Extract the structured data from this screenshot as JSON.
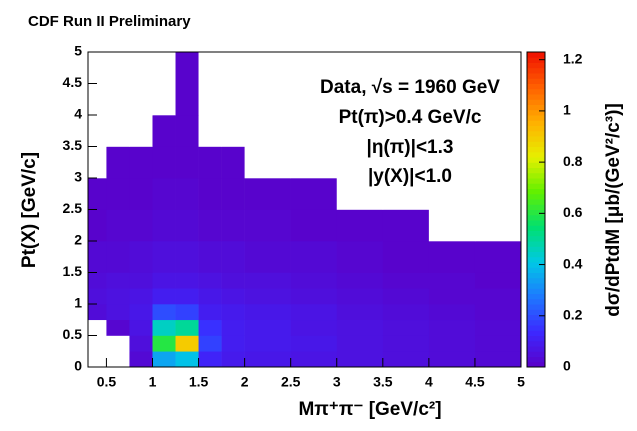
{
  "chart_data": {
    "type": "heatmap",
    "title": "CDF Run II Preliminary",
    "annotations": [
      "Data, √s = 1960 GeV",
      "Pt(π)>0.4 GeV/c",
      "|η(π)|<1.3",
      "|y(X)|<1.0"
    ],
    "x_label": "Mπ⁺π⁻ [GeV/c²]",
    "y_label": "Pt(X) [GeV/c]",
    "z_label": "dσ/dPtdM [μb/(GeV²/c³)]",
    "xlim": [
      0.3,
      5
    ],
    "ylim": [
      0,
      5
    ],
    "zlim": [
      0,
      1.23
    ],
    "xticks": [
      0.5,
      1,
      1.5,
      2,
      2.5,
      3,
      3.5,
      4,
      4.5,
      5
    ],
    "yticks": [
      0,
      0.5,
      1,
      1.5,
      2,
      2.5,
      3,
      3.5,
      4,
      4.5,
      5
    ],
    "zticks": [
      0,
      0.2,
      0.4,
      0.6,
      0.8,
      1,
      1.2
    ],
    "xbins": [
      0.3,
      0.5,
      0.75,
      1.0,
      1.25,
      1.5,
      1.75,
      2.0,
      2.5,
      3.0,
      3.5,
      4.0,
      4.5,
      5.0
    ],
    "ybins": [
      0,
      0.25,
      0.5,
      0.75,
      1,
      1.25,
      1.5,
      2,
      2.5,
      3,
      3.5,
      4,
      5
    ],
    "z": [
      [
        0,
        0,
        0.03,
        0.35,
        0.4,
        0.12,
        0.09,
        0.08,
        0.07,
        0.06,
        0.05,
        0.04,
        0.03
      ],
      [
        0,
        0,
        0.05,
        0.6,
        0.9,
        0.18,
        0.1,
        0.09,
        0.08,
        0.06,
        0.05,
        0.04,
        0.03
      ],
      [
        0,
        0.02,
        0.07,
        0.45,
        0.5,
        0.15,
        0.1,
        0.09,
        0.07,
        0.06,
        0.05,
        0.04,
        0.03
      ],
      [
        0.04,
        0.06,
        0.08,
        0.2,
        0.18,
        0.1,
        0.09,
        0.08,
        0.07,
        0.05,
        0.04,
        0.03,
        0.02
      ],
      [
        0.05,
        0.06,
        0.07,
        0.1,
        0.1,
        0.08,
        0.07,
        0.06,
        0.05,
        0.04,
        0.03,
        0.02,
        0.02
      ],
      [
        0.04,
        0.05,
        0.05,
        0.07,
        0.07,
        0.06,
        0.05,
        0.05,
        0.04,
        0.03,
        0.02,
        0.02,
        0.01
      ],
      [
        0.03,
        0.03,
        0.04,
        0.05,
        0.05,
        0.04,
        0.04,
        0.03,
        0.03,
        0.02,
        0.01,
        0.01,
        0.01
      ],
      [
        0.01,
        0.02,
        0.02,
        0.03,
        0.03,
        0.02,
        0.02,
        0.02,
        0.01,
        0.01,
        0.01,
        0,
        0
      ],
      [
        0.01,
        0.01,
        0.01,
        0.02,
        0.02,
        0.01,
        0.01,
        0.01,
        0.01,
        0,
        0,
        0,
        0
      ],
      [
        0,
        0.01,
        0.01,
        0.01,
        0.01,
        0.01,
        0.01,
        0,
        0,
        0,
        0,
        0,
        0
      ],
      [
        0,
        0,
        0,
        0.01,
        0.01,
        0,
        0,
        0,
        0,
        0,
        0,
        0,
        0
      ],
      [
        0,
        0,
        0,
        0,
        0.01,
        0,
        0,
        0,
        0,
        0,
        0,
        0,
        0
      ]
    ],
    "colorscale": [
      "#5a00c8",
      "#3c28ff",
      "#1e78ff",
      "#00c8e6",
      "#00e070",
      "#60f000",
      "#e6f000",
      "#ffb000",
      "#ff6000",
      "#f01000"
    ]
  }
}
